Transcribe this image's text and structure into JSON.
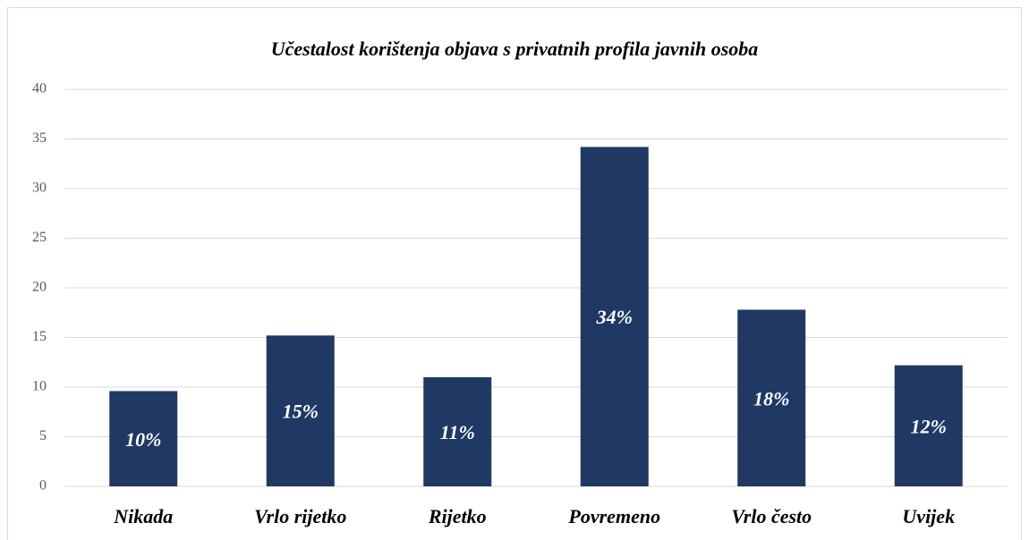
{
  "chart_data": {
    "type": "bar",
    "title": "Učestalost korištenja objava s privatnih profila javnih osoba",
    "categories": [
      "Nikada",
      "Vrlo rijetko",
      "Rijetko",
      "Povremeno",
      "Vrlo često",
      "Uvijek"
    ],
    "values": [
      9.6,
      15.2,
      11,
      34.2,
      17.8,
      12.2
    ],
    "value_labels": [
      "10%",
      "15%",
      "11%",
      "34%",
      "18%",
      "12%"
    ],
    "color": "#203864",
    "ylim": [
      0,
      40
    ],
    "yticks": [
      0,
      5,
      10,
      15,
      20,
      25,
      30,
      35,
      40
    ],
    "grid": true
  }
}
